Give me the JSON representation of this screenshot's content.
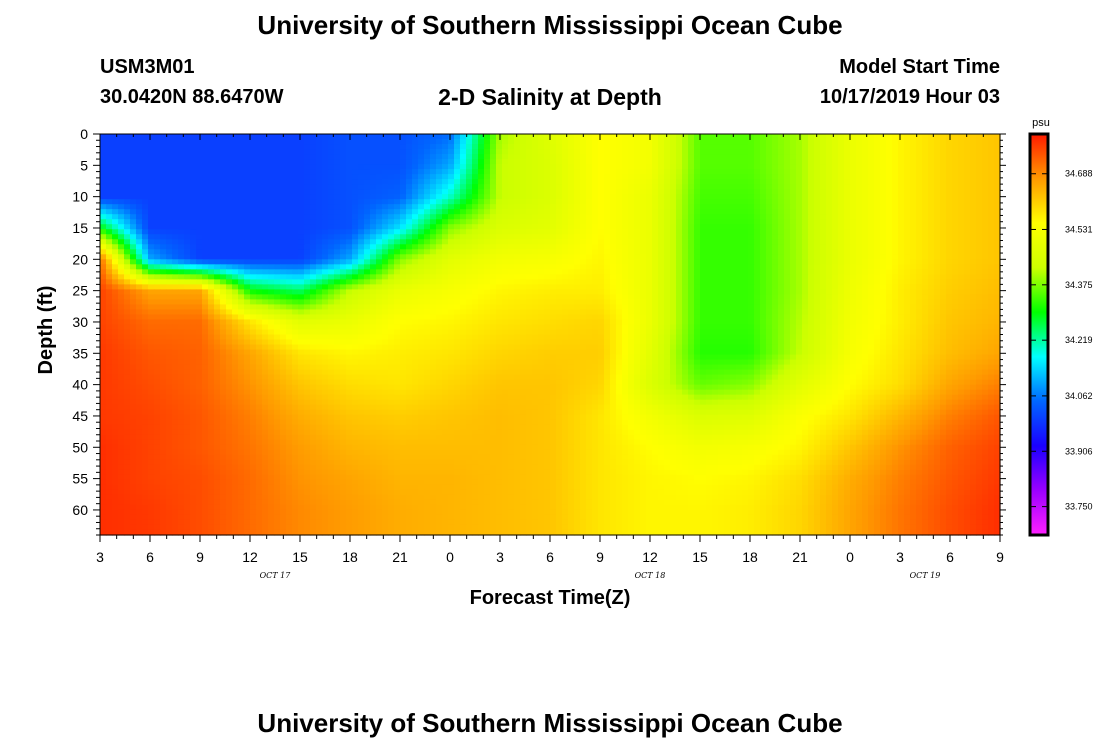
{
  "header": {
    "title": "University of Southern Mississippi Ocean Cube",
    "station_id": "USM3M01",
    "coordinates": "30.0420N 88.6470W",
    "plot_title": "2-D Salinity at Depth",
    "model_start_label": "Model Start Time",
    "model_start_value": "10/17/2019 Hour 03"
  },
  "footer": {
    "title": "University of Southern Mississippi Ocean Cube"
  },
  "chart_data": {
    "type": "heatmap",
    "title": "2-D Salinity at Depth",
    "xlabel": "Forecast Time(Z)",
    "ylabel": "Depth (ft)",
    "x_tick_labels": [
      "3",
      "6",
      "9",
      "12",
      "15",
      "18",
      "21",
      "0",
      "3",
      "6",
      "9",
      "12",
      "15",
      "18",
      "21",
      "0",
      "3",
      "6",
      "9"
    ],
    "x_date_labels": [
      {
        "text": "OCT 17",
        "hour_index": 3.5
      },
      {
        "text": "OCT 18",
        "hour_index": 11
      },
      {
        "text": "OCT 19",
        "hour_index": 16.5
      }
    ],
    "x_range_hours": [
      0,
      54
    ],
    "y_ticks": [
      0,
      5,
      10,
      15,
      20,
      25,
      30,
      35,
      40,
      45,
      50,
      55,
      60
    ],
    "ylim": [
      0,
      64
    ],
    "y_inverted": true,
    "colorbar": {
      "unit": "psu",
      "ticks": [
        34.688,
        34.531,
        34.375,
        34.219,
        34.062,
        33.906,
        33.75
      ],
      "range": [
        33.67,
        34.8
      ],
      "colors": [
        "#ff20ff",
        "#9b00ff",
        "#1a00ff",
        "#0066ff",
        "#00ffff",
        "#00ff00",
        "#ccff00",
        "#ffff00",
        "#ff9900",
        "#ff1a00"
      ]
    },
    "salinity_samples": {
      "hours": [
        0,
        3,
        6,
        9,
        12,
        15,
        18,
        21,
        24,
        27,
        30,
        33,
        36,
        39,
        42,
        45,
        48,
        51,
        54
      ],
      "depths_ft": [
        0,
        5,
        10,
        15,
        20,
        25,
        30,
        35,
        40,
        45,
        50,
        55,
        60,
        64
      ],
      "values_by_depth": [
        [
          34.0,
          34.0,
          34.0,
          34.0,
          34.0,
          34.02,
          34.02,
          34.05,
          34.4,
          34.47,
          34.55,
          34.52,
          34.35,
          34.35,
          34.4,
          34.5,
          34.56,
          34.6,
          34.62
        ],
        [
          34.0,
          34.0,
          34.0,
          34.0,
          34.0,
          34.02,
          34.02,
          34.1,
          34.42,
          34.46,
          34.55,
          34.52,
          34.35,
          34.35,
          34.4,
          34.5,
          34.56,
          34.6,
          34.62
        ],
        [
          34.0,
          34.0,
          34.0,
          34.0,
          34.0,
          34.02,
          34.04,
          34.2,
          34.42,
          34.46,
          34.55,
          34.5,
          34.34,
          34.34,
          34.4,
          34.5,
          34.56,
          34.6,
          34.62
        ],
        [
          34.3,
          34.0,
          34.0,
          34.0,
          34.0,
          34.02,
          34.15,
          34.38,
          34.46,
          34.48,
          34.55,
          34.5,
          34.33,
          34.33,
          34.4,
          34.5,
          34.56,
          34.6,
          34.62
        ],
        [
          34.72,
          34.1,
          34.0,
          34.0,
          34.0,
          34.1,
          34.38,
          34.48,
          34.52,
          34.53,
          34.56,
          34.5,
          34.33,
          34.33,
          34.4,
          34.5,
          34.56,
          34.6,
          34.62
        ],
        [
          34.76,
          34.66,
          34.66,
          34.3,
          34.25,
          34.42,
          34.5,
          34.53,
          34.56,
          34.57,
          34.57,
          34.5,
          34.33,
          34.33,
          34.4,
          34.51,
          34.57,
          34.61,
          34.63
        ],
        [
          34.76,
          34.72,
          34.72,
          34.58,
          34.48,
          34.5,
          34.55,
          34.56,
          34.58,
          34.59,
          34.6,
          34.5,
          34.33,
          34.33,
          34.41,
          34.52,
          34.57,
          34.62,
          34.64
        ],
        [
          34.77,
          34.74,
          34.73,
          34.66,
          34.58,
          34.56,
          34.57,
          34.58,
          34.6,
          34.61,
          34.61,
          34.48,
          34.32,
          34.32,
          34.42,
          34.53,
          34.58,
          34.63,
          34.66
        ],
        [
          34.77,
          34.75,
          34.73,
          34.68,
          34.62,
          34.59,
          34.58,
          34.6,
          34.62,
          34.62,
          34.6,
          34.46,
          34.36,
          34.38,
          34.48,
          34.55,
          34.59,
          34.66,
          34.7
        ],
        [
          34.77,
          34.76,
          34.74,
          34.7,
          34.65,
          34.62,
          34.61,
          34.62,
          34.63,
          34.62,
          34.58,
          34.52,
          34.46,
          34.47,
          34.54,
          34.58,
          34.64,
          34.7,
          34.74
        ],
        [
          34.78,
          34.76,
          34.74,
          34.71,
          34.67,
          34.64,
          34.63,
          34.63,
          34.63,
          34.62,
          34.58,
          34.55,
          34.52,
          34.53,
          34.56,
          34.62,
          34.68,
          34.73,
          34.76
        ],
        [
          34.78,
          34.76,
          34.75,
          34.72,
          34.68,
          34.66,
          34.64,
          34.64,
          34.63,
          34.62,
          34.58,
          34.56,
          34.55,
          34.56,
          34.59,
          34.65,
          34.7,
          34.74,
          34.77
        ],
        [
          34.78,
          34.77,
          34.75,
          34.72,
          34.69,
          34.67,
          34.65,
          34.64,
          34.63,
          34.62,
          34.58,
          34.56,
          34.56,
          34.57,
          34.6,
          34.66,
          34.71,
          34.75,
          34.78
        ],
        [
          34.78,
          34.77,
          34.75,
          34.72,
          34.69,
          34.67,
          34.65,
          34.64,
          34.63,
          34.62,
          34.58,
          34.56,
          34.56,
          34.57,
          34.6,
          34.66,
          34.71,
          34.75,
          34.78
        ]
      ]
    }
  }
}
